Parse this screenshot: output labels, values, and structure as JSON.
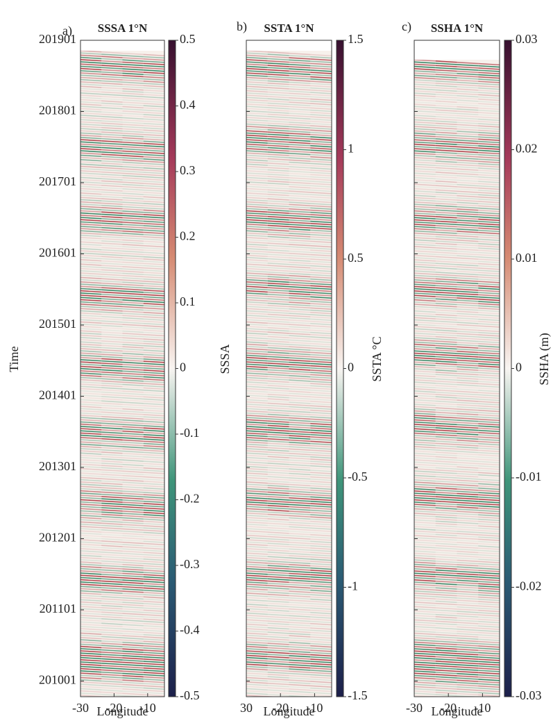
{
  "chart_data": [
    {
      "type": "heatmap",
      "panel_label": "a)",
      "title": "SSSA 1°N",
      "xlabel": "Longitude",
      "ylabel": "Time",
      "xlim": [
        -30,
        -5
      ],
      "xticks": [
        -30,
        -20,
        -10
      ],
      "ylim": [
        2009.78,
        2019.0
      ],
      "yticks": [
        {
          "value": 2019,
          "label": "201901"
        },
        {
          "value": 2018,
          "label": "201801"
        },
        {
          "value": 2017,
          "label": "201701"
        },
        {
          "value": 2016,
          "label": "201601"
        },
        {
          "value": 2015,
          "label": "201501"
        },
        {
          "value": 2014,
          "label": "201401"
        },
        {
          "value": 2013,
          "label": "201301"
        },
        {
          "value": 2012,
          "label": "201201"
        },
        {
          "value": 2011,
          "label": "201101"
        },
        {
          "value": 2010,
          "label": "201001"
        }
      ],
      "colorbar": {
        "label": "SSSA",
        "lim": [
          -0.5,
          0.5
        ],
        "ticks": [
          0.5,
          0.4,
          0.3,
          0.2,
          0.1,
          0,
          -0.1,
          -0.2,
          -0.3,
          -0.4,
          -0.5
        ]
      }
    },
    {
      "type": "heatmap",
      "panel_label": "b)",
      "title": "SSTA 1°N",
      "xlabel": "Longitude",
      "xlim": [
        -30,
        -5
      ],
      "xticks": [
        {
          "value": -30,
          "label": "30"
        },
        -20,
        -10
      ],
      "colorbar": {
        "label": "SSTA °C",
        "lim": [
          -1.5,
          1.5
        ],
        "ticks": [
          1.5,
          1,
          0.5,
          0,
          -0.5,
          -1,
          -1.5
        ]
      }
    },
    {
      "type": "heatmap",
      "panel_label": "c)",
      "title": "SSHA 1°N",
      "xlabel": "Longitude",
      "xlim": [
        -30,
        -5
      ],
      "xticks": [
        -30,
        -20,
        -10
      ],
      "colorbar": {
        "label": "SSHA (m)",
        "lim": [
          -0.03,
          0.03
        ],
        "ticks": [
          0.03,
          0.02,
          0.01,
          0,
          -0.01,
          -0.02,
          -0.03
        ]
      }
    }
  ]
}
